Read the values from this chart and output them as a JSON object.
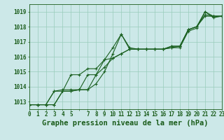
{
  "title": "Graphe pression niveau de la mer (hPa)",
  "xlim": [
    0,
    23
  ],
  "ylim": [
    1012.5,
    1019.5
  ],
  "yticks": [
    1013,
    1014,
    1015,
    1016,
    1017,
    1018,
    1019
  ],
  "xticks": [
    0,
    1,
    2,
    3,
    4,
    5,
    6,
    7,
    8,
    9,
    10,
    11,
    12,
    13,
    14,
    15,
    16,
    17,
    18,
    19,
    20,
    21,
    22,
    23
  ],
  "xtick_labels": [
    "0",
    "1",
    "2",
    "3",
    "4",
    "5",
    "",
    "7",
    "8",
    "9",
    "10",
    "11",
    "12",
    "13",
    "14",
    "15",
    "16",
    "17",
    "18",
    "19",
    "20",
    "21",
    "22",
    "23"
  ],
  "background_color": "#cce8e8",
  "grid_color": "#99ccbb",
  "line_color": "#1a6020",
  "series": [
    [
      1012.8,
      1012.8,
      1012.8,
      1012.8,
      1013.7,
      1013.7,
      1013.8,
      1013.8,
      1014.8,
      1015.8,
      1016.6,
      1017.5,
      1016.6,
      1016.5,
      1016.5,
      1016.5,
      1016.5,
      1016.6,
      1016.7,
      1017.8,
      1018.0,
      1019.0,
      1018.7,
      1018.7
    ],
    [
      1012.8,
      1012.8,
      1012.8,
      1012.8,
      1013.7,
      1013.7,
      1013.8,
      1013.8,
      1014.2,
      1015.0,
      1016.2,
      1017.5,
      1016.5,
      1016.5,
      1016.5,
      1016.5,
      1016.5,
      1016.6,
      1016.6,
      1017.7,
      1017.9,
      1019.0,
      1018.6,
      1018.7
    ],
    [
      1012.8,
      1012.8,
      1012.8,
      1013.7,
      1013.8,
      1013.8,
      1013.8,
      1014.8,
      1014.8,
      1015.3,
      1015.9,
      1016.2,
      1016.5,
      1016.5,
      1016.5,
      1016.5,
      1016.5,
      1016.7,
      1016.7,
      1017.8,
      1018.0,
      1018.8,
      1018.7,
      1018.7
    ],
    [
      1012.8,
      1012.8,
      1012.8,
      1013.7,
      1013.7,
      1014.8,
      1014.8,
      1015.2,
      1015.2,
      1015.8,
      1015.9,
      1016.2,
      1016.5,
      1016.5,
      1016.5,
      1016.5,
      1016.5,
      1016.7,
      1016.7,
      1017.8,
      1018.0,
      1018.7,
      1018.7,
      1018.7
    ]
  ],
  "title_fontsize": 7.5,
  "tick_fontsize": 5.5,
  "ylabel_fontsize": 5.5
}
